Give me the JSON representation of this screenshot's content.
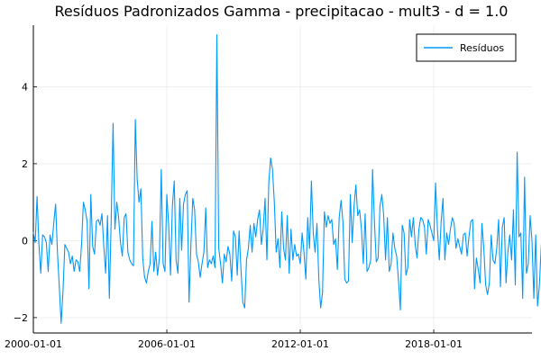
{
  "chart_data": {
    "type": "line",
    "title": "Resíduos Padronizados Gamma - precipitacao - mult3 - d = 1.0",
    "xlabel": "",
    "ylabel": "",
    "x_start": "2000-01-01",
    "x_frequency": "monthly",
    "xlim": [
      "2000-01-01",
      "2022-06-01"
    ],
    "ylim": [
      -2.4,
      5.6
    ],
    "x_ticks": [
      "2000-01-01",
      "2006-01-01",
      "2012-01-01",
      "2018-01-01"
    ],
    "y_ticks": [
      -2,
      0,
      2,
      4
    ],
    "grid": true,
    "legend": {
      "position": "top-right"
    },
    "series": [
      {
        "name": "Resíduos",
        "color": "#009AFA",
        "values": [
          0.22,
          -0.05,
          1.15,
          -0.1,
          -0.85,
          0.15,
          0.1,
          -0.05,
          -0.8,
          0.15,
          -0.1,
          0.45,
          0.95,
          -0.3,
          -1.2,
          -2.15,
          -1.3,
          -0.1,
          -0.2,
          -0.3,
          -0.6,
          -0.4,
          -0.8,
          -0.5,
          -0.55,
          -0.8,
          -0.1,
          1.0,
          0.8,
          0.5,
          -1.25,
          1.2,
          -0.15,
          -0.35,
          0.5,
          0.55,
          0.4,
          0.7,
          -0.15,
          -0.85,
          0.65,
          -1.5,
          0.55,
          3.05,
          0.3,
          1.0,
          0.6,
          -0.05,
          -0.4,
          0.6,
          0.7,
          -0.3,
          -0.5,
          -0.6,
          -0.65,
          3.15,
          1.6,
          1.0,
          1.35,
          -0.45,
          -0.95,
          -1.1,
          -0.8,
          -0.6,
          0.5,
          -0.8,
          -0.3,
          -0.9,
          -0.45,
          1.85,
          -0.6,
          -0.8,
          1.2,
          0.4,
          -0.9,
          0.9,
          1.55,
          -0.5,
          -0.85,
          1.1,
          -0.25,
          0.95,
          1.2,
          1.3,
          -1.6,
          -0.1,
          1.1,
          0.8,
          -0.35,
          -0.55,
          -0.95,
          -0.6,
          -0.3,
          0.85,
          -0.7,
          -0.5,
          -0.6,
          -0.4,
          -0.7,
          5.35,
          -0.2,
          -0.6,
          -1.1,
          -0.35,
          -0.55,
          -0.15,
          -0.35,
          -1.05,
          0.25,
          0.1,
          -0.9,
          0.25,
          -0.75,
          -1.6,
          -1.75,
          -0.5,
          -0.2,
          0.4,
          -0.3,
          0.45,
          0.1,
          0.55,
          0.8,
          -0.1,
          0.3,
          1.1,
          -0.5,
          1.5,
          2.15,
          1.85,
          1.0,
          -0.3,
          0.05,
          -0.7,
          0.75,
          -0.2,
          -0.5,
          0.65,
          -0.85,
          0.3,
          -0.5,
          -0.1,
          -0.4,
          -0.35,
          -0.6,
          0.2,
          -0.3,
          -1.0,
          0.6,
          -0.2,
          1.55,
          0.2,
          -0.3,
          0.45,
          -1.0,
          -1.75,
          -1.35,
          0.75,
          0.35,
          0.65,
          0.45,
          0.55,
          -0.1,
          0.05,
          -0.75,
          0.6,
          1.05,
          0.5,
          -1.0,
          -1.1,
          -1.05,
          1.2,
          -0.05,
          0.9,
          1.45,
          0.65,
          0.8,
          0.3,
          -0.6,
          0.7,
          -0.8,
          -0.7,
          -0.5,
          1.85,
          0.5,
          -0.55,
          -0.45,
          0.9,
          1.2,
          0.65,
          -0.5,
          0.6,
          -0.8,
          -0.6,
          0.2,
          -0.2,
          -0.4,
          -1.05,
          -1.8,
          0.4,
          0.2,
          -0.9,
          -0.7,
          0.55,
          0.1,
          0.6,
          -0.1,
          -0.45,
          0.3,
          0.6,
          0.55,
          0.35,
          -0.35,
          0.55,
          0.4,
          0.2,
          0.0,
          1.5,
          0.3,
          -0.5,
          0.5,
          1.1,
          -0.5,
          0.2,
          -0.1,
          0.3,
          0.6,
          0.45,
          -0.2,
          0.05,
          -0.15,
          -0.35,
          0.15,
          0.2,
          -0.4,
          0.1,
          0.5,
          0.55,
          -1.25,
          -0.45,
          -0.75,
          -1.1,
          0.45,
          -0.2,
          -1.15,
          -1.4,
          -1.1,
          0.15,
          -0.5,
          -0.6,
          -0.2,
          0.55,
          -1.2,
          0.35,
          0.6,
          -1.1,
          -0.3,
          0.15,
          -0.5,
          0.8,
          -1.15,
          2.3,
          0.1,
          0.2,
          -1.5,
          1.65,
          -0.85,
          -0.6,
          0.65,
          0.0,
          -1.5,
          0.15,
          -1.7,
          -1.15,
          -0.15,
          0.55,
          0.2,
          -0.8,
          0.1,
          0.15,
          0.45,
          -0.25,
          0.55,
          0.1,
          -1.2,
          0.35,
          0.25,
          0.1,
          -0.25,
          -2.25,
          -0.6,
          0.15,
          -2.0,
          0.05,
          -1.25,
          -0.55,
          -1.1,
          -0.2,
          -0.4,
          0.15,
          -0.6,
          0.1,
          -0.3,
          0.5,
          0.95,
          0.1,
          -0.6,
          -1.3,
          0.2,
          -0.35,
          1.75,
          0.6,
          0.0,
          1.35,
          0.6,
          -0.4,
          -0.1,
          -1.75,
          0.55,
          0.2,
          0.85,
          1.0,
          -0.25,
          -0.7,
          -0.25,
          0.4,
          0.45,
          -0.15,
          -0.6,
          1.3,
          0.25,
          0.95,
          1.15,
          0.5,
          0.05,
          -0.15,
          -0.5,
          -1.0,
          -0.4,
          -1.05,
          0.35,
          0.55,
          0.8,
          -0.25,
          0.05,
          -1.1,
          -1.7,
          -0.75,
          -1.35,
          0.55,
          1.05,
          0.55,
          0.45,
          1.0,
          -0.85,
          -0.6,
          -1.2,
          -0.4,
          -0.15,
          -1.35,
          0.7,
          0.05,
          -1.1,
          -0.3,
          0.35,
          0.6,
          0.55,
          0.15,
          -0.4,
          -0.7,
          0.15,
          0.5,
          -1.1,
          -1.2,
          -1.1,
          -1.2,
          -1.55,
          -1.0,
          0.45,
          1.2,
          0.15
        ]
      }
    ]
  }
}
